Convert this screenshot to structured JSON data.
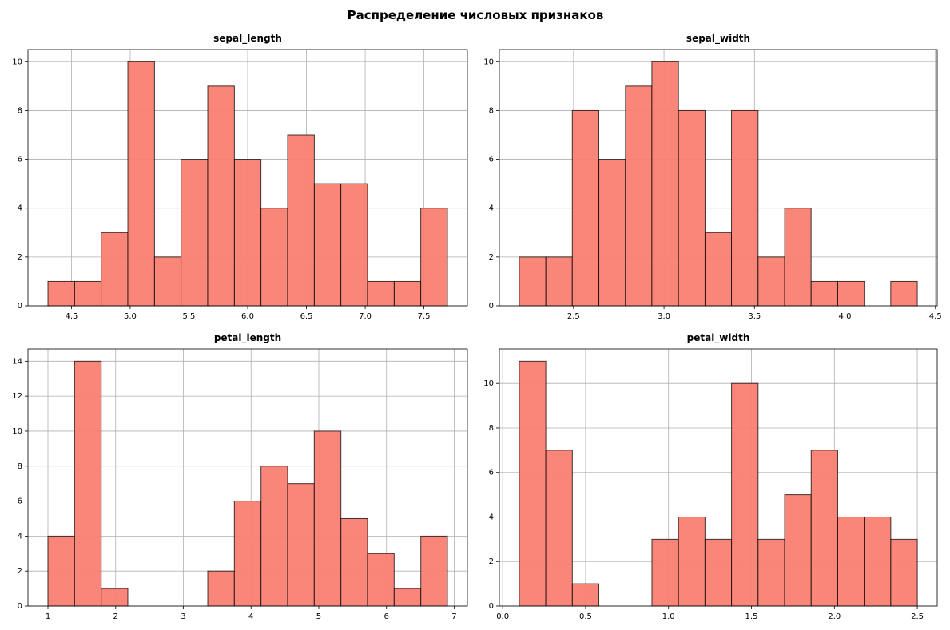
{
  "title": "Распределение числовых признаков",
  "chart_data": [
    {
      "type": "histogram",
      "title": "sepal_length",
      "bins": [
        4.3,
        4.527,
        4.753,
        4.98,
        5.207,
        5.433,
        5.66,
        5.887,
        6.113,
        6.34,
        6.567,
        6.793,
        7.02,
        7.247,
        7.473,
        7.7
      ],
      "counts": [
        1,
        1,
        3,
        10,
        2,
        6,
        9,
        6,
        4,
        7,
        5,
        5,
        1,
        1,
        4
      ],
      "color": "#fa8072",
      "edgecolor": "#000000",
      "xlim": [
        4.13,
        7.87
      ],
      "ylim": [
        0,
        10.5
      ],
      "xticks": [
        4.5,
        {
          "value": 5,
          "label": "5.0"
        },
        5.5,
        {
          "value": 6,
          "label": "6.0"
        },
        6.5,
        {
          "value": 7,
          "label": "7.0"
        },
        7.5
      ],
      "yticks": [
        0,
        2,
        4,
        6,
        8,
        10
      ],
      "grid": true
    },
    {
      "type": "histogram",
      "title": "sepal_width",
      "bins": [
        2.2,
        2.347,
        2.493,
        2.64,
        2.787,
        2.933,
        3.08,
        3.227,
        3.373,
        3.52,
        3.667,
        3.813,
        3.96,
        4.107,
        4.253,
        4.4
      ],
      "counts": [
        2,
        2,
        8,
        6,
        9,
        10,
        8,
        3,
        8,
        2,
        4,
        1,
        1,
        0,
        1
      ],
      "color": "#fa8072",
      "edgecolor": "#000000",
      "xlim": [
        2.09,
        4.51
      ],
      "ylim": [
        0,
        10.5
      ],
      "xticks": [
        2.5,
        {
          "value": 3,
          "label": "3.0"
        },
        3.5,
        {
          "value": 4,
          "label": "4.0"
        },
        4.5
      ],
      "yticks": [
        0,
        2,
        4,
        6,
        8,
        10
      ],
      "grid": true
    },
    {
      "type": "histogram",
      "title": "petal_length",
      "bins": [
        1,
        1.393,
        1.787,
        2.18,
        2.573,
        2.967,
        3.36,
        3.753,
        4.147,
        4.54,
        4.933,
        5.327,
        5.72,
        6.113,
        6.507,
        6.9
      ],
      "counts": [
        4,
        14,
        1,
        0,
        0,
        0,
        2,
        6,
        8,
        7,
        10,
        5,
        3,
        1,
        4
      ],
      "color": "#fa8072",
      "edgecolor": "#000000",
      "xlim": [
        0.705,
        7.195
      ],
      "ylim": [
        0,
        14.7
      ],
      "xticks": [
        1,
        2,
        3,
        4,
        5,
        6,
        7
      ],
      "yticks": [
        0,
        2,
        4,
        6,
        8,
        10,
        12,
        14
      ],
      "grid": true
    },
    {
      "type": "histogram",
      "title": "petal_width",
      "bins": [
        0.1,
        0.26,
        0.42,
        0.58,
        0.74,
        0.9,
        1.06,
        1.22,
        1.38,
        1.54,
        1.7,
        1.86,
        2.02,
        2.18,
        2.34,
        2.5
      ],
      "counts": [
        11,
        7,
        1,
        0,
        0,
        3,
        4,
        3,
        10,
        3,
        5,
        7,
        4,
        4,
        3
      ],
      "color": "#fa8072",
      "edgecolor": "#000000",
      "xlim": [
        -0.02,
        2.62
      ],
      "ylim": [
        0,
        11.55
      ],
      "xticks": [
        {
          "value": 0,
          "label": "0.0"
        },
        0.5,
        {
          "value": 1,
          "label": "1.0"
        },
        1.5,
        {
          "value": 2,
          "label": "2.0"
        },
        2.5
      ],
      "yticks": [
        0,
        2,
        4,
        6,
        8,
        10
      ],
      "grid": true
    }
  ]
}
